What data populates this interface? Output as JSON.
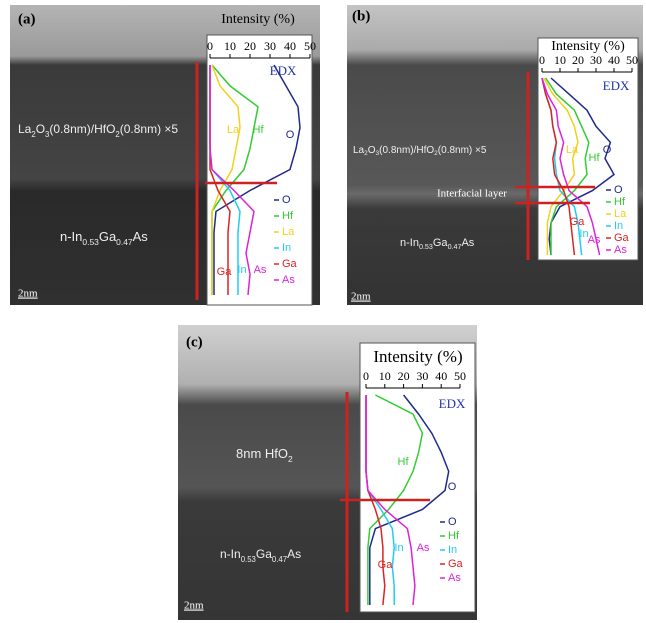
{
  "chart_data": [
    {
      "type": "line",
      "panel": "(a)",
      "title": "Intensity (%)",
      "annotation": "EDX",
      "layer_label": [
        "La",
        "2",
        "O",
        "3",
        "(0.8nm)/HfO",
        "2",
        "(0.8nm) ×5"
      ],
      "substrate_label": [
        "n-In",
        "0.53",
        "Ga",
        "0.47",
        "As"
      ],
      "scale_bar": "2nm",
      "xlim": [
        0,
        50
      ],
      "xticks": [
        0,
        10,
        20,
        30,
        40,
        50
      ],
      "series": [
        {
          "name": "O",
          "color": "#1f2a8a",
          "values": [
            32,
            38,
            44,
            45,
            43,
            40,
            20,
            3,
            2,
            2,
            2,
            2
          ]
        },
        {
          "name": "Hf",
          "color": "#33cc33",
          "values": [
            1,
            10,
            24,
            22,
            20,
            17,
            8,
            1,
            1,
            1,
            1,
            1
          ]
        },
        {
          "name": "La",
          "color": "#f0d020",
          "values": [
            1,
            5,
            14,
            15,
            13,
            11,
            5,
            1,
            1,
            1,
            1,
            1
          ]
        },
        {
          "name": "In",
          "color": "#22ccee",
          "values": [
            0,
            0,
            0,
            0,
            0,
            1,
            10,
            15,
            14,
            14,
            14,
            14
          ]
        },
        {
          "name": "Ga",
          "color": "#dd2222",
          "values": [
            0,
            0,
            0,
            0,
            0,
            0,
            4,
            10,
            9,
            9,
            9,
            9
          ]
        },
        {
          "name": "As",
          "color": "#dd22dd",
          "values": [
            0,
            0,
            0,
            0,
            0,
            1,
            12,
            22,
            20,
            18,
            20,
            19
          ]
        }
      ]
    },
    {
      "type": "line",
      "panel": "(b)",
      "title": "Intensity (%)",
      "annotation": "EDX",
      "layer_label": [
        "La",
        "2",
        "O",
        "3",
        "(0.8nm)/HfO",
        "2",
        "(0.8nm) ×5"
      ],
      "substrate_label": [
        "n-In",
        "0.53",
        "Ga",
        "0.47",
        "As"
      ],
      "scale_bar": "2nm",
      "interface_label": "Interfacial layer",
      "xlim": [
        0,
        50
      ],
      "xticks": [
        0,
        10,
        20,
        30,
        40,
        50
      ],
      "series": [
        {
          "name": "O",
          "color": "#1f2a8a",
          "values": [
            5,
            15,
            25,
            30,
            38,
            35,
            40,
            28,
            10,
            5,
            4,
            5
          ]
        },
        {
          "name": "Hf",
          "color": "#33cc33",
          "values": [
            2,
            8,
            18,
            22,
            26,
            24,
            25,
            18,
            8,
            5,
            5,
            5
          ]
        },
        {
          "name": "La",
          "color": "#f0d020",
          "values": [
            1,
            6,
            14,
            18,
            20,
            17,
            18,
            12,
            5,
            3,
            3,
            3
          ]
        },
        {
          "name": "In",
          "color": "#22ccee",
          "values": [
            0,
            2,
            5,
            6,
            8,
            7,
            8,
            10,
            18,
            20,
            21,
            22
          ]
        },
        {
          "name": "Ga",
          "color": "#dd2222",
          "values": [
            0,
            2,
            5,
            6,
            8,
            6,
            7,
            12,
            15,
            16,
            17,
            18
          ]
        },
        {
          "name": "As",
          "color": "#dd22dd",
          "values": [
            0,
            3,
            8,
            9,
            12,
            10,
            12,
            15,
            25,
            28,
            30,
            32
          ]
        }
      ]
    },
    {
      "type": "line",
      "panel": "(c)",
      "title": "Intensity (%)",
      "annotation": "EDX",
      "layer_label": [
        "8nm HfO",
        "2"
      ],
      "substrate_label": [
        "n-In",
        "0.53",
        "Ga",
        "0.47",
        "As"
      ],
      "scale_bar": "2nm",
      "xlim": [
        0,
        50
      ],
      "xticks": [
        0,
        10,
        20,
        30,
        40,
        50
      ],
      "series": [
        {
          "name": "O",
          "color": "#1f2a8a",
          "values": [
            20,
            28,
            35,
            40,
            44,
            42,
            30,
            5,
            2,
            2,
            2,
            2
          ]
        },
        {
          "name": "Hf",
          "color": "#33cc33",
          "values": [
            5,
            25,
            30,
            28,
            25,
            20,
            12,
            2,
            1,
            1,
            1,
            1
          ]
        },
        {
          "name": "In",
          "color": "#22ccee",
          "values": [
            0,
            0,
            0,
            0,
            0,
            1,
            8,
            14,
            15,
            14,
            15,
            15
          ]
        },
        {
          "name": "Ga",
          "color": "#dd2222",
          "values": [
            0,
            0,
            0,
            0,
            0,
            1,
            5,
            8,
            9,
            9,
            10,
            9
          ]
        },
        {
          "name": "As",
          "color": "#dd22dd",
          "values": [
            0,
            0,
            0,
            0,
            0,
            1,
            10,
            22,
            24,
            25,
            26,
            25
          ]
        }
      ]
    }
  ]
}
